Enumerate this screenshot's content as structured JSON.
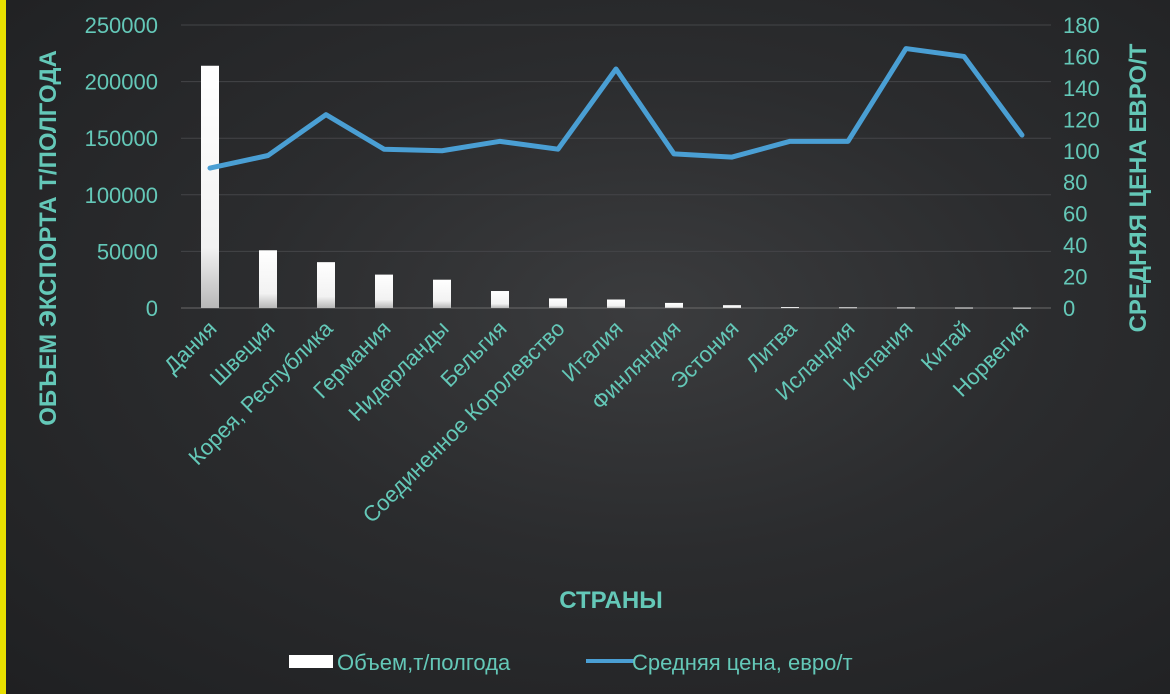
{
  "chart_data": {
    "type": "bar",
    "categories": [
      "Дания",
      "Швеция",
      "Корея, Республика",
      "Германия",
      "Нидерланды",
      "Бельгия",
      "Соединенное Королевство",
      "Италия",
      "Финляндия",
      "Эстония",
      "Литва",
      "Исландия",
      "Испания",
      "Китай",
      "Норвегия"
    ],
    "series": [
      {
        "name": "Объем,т/полгода",
        "type": "bar",
        "axis": "left",
        "color": "#ffffff",
        "values": [
          214000,
          51000,
          40500,
          29500,
          25000,
          15000,
          8500,
          7500,
          4500,
          2500,
          800,
          600,
          500,
          400,
          300
        ]
      },
      {
        "name": "Средняя цена, евро/т",
        "type": "line",
        "axis": "right",
        "color": "#4a9fd4",
        "values": [
          89,
          97,
          123,
          101,
          100,
          106,
          101,
          152,
          98,
          96,
          106,
          106,
          165,
          160,
          110
        ]
      }
    ],
    "xlabel": "СТРАНЫ",
    "ylabel": "ОБЪЕМ ЭКСПОРТА Т/ПОЛГОДА",
    "y2label": "СРЕДНЯЯ ЦЕНА ЕВРО/Т",
    "ylim": [
      0,
      250000
    ],
    "y2lim": [
      0,
      180
    ],
    "yticks": [
      "0",
      "50000",
      "100000",
      "150000",
      "200000",
      "250000"
    ],
    "y2ticks": [
      "0",
      "20",
      "40",
      "60",
      "80",
      "100",
      "120",
      "140",
      "160",
      "180"
    ],
    "grid": true,
    "legend": "bottom"
  }
}
